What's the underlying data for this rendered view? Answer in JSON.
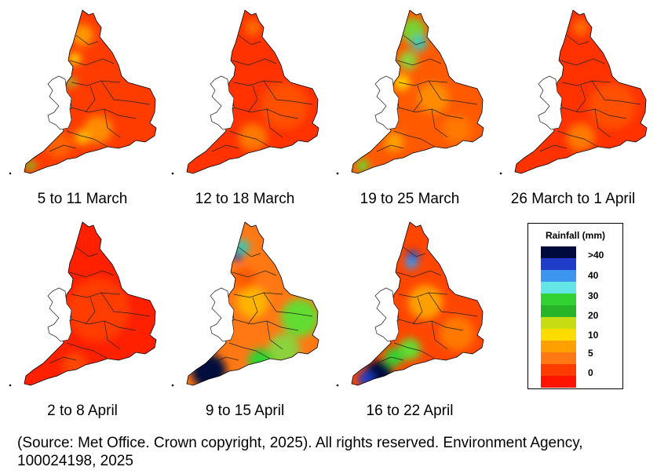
{
  "maps": [
    {
      "caption": "5 to 11 March",
      "style": "mixed"
    },
    {
      "caption": "12 to 18 March",
      "style": "dry"
    },
    {
      "caption": "19 to 25 March",
      "style": "wetnorth"
    },
    {
      "caption": "26 March to 1 April",
      "style": "dry"
    },
    {
      "caption": "2 to 8 April",
      "style": "verydry"
    },
    {
      "caption": "9 to 15 April",
      "style": "wetsw"
    },
    {
      "caption": "16 to 22 April",
      "style": "wetsw2"
    }
  ],
  "legend": {
    "title": "Rainfall (mm)",
    "colors": [
      "#000a3c",
      "#1e3cc8",
      "#3c96f0",
      "#64e6e6",
      "#32d232",
      "#28b428",
      "#c8dc14",
      "#ffdc00",
      "#ffa000",
      "#ff7814",
      "#ff3c00",
      "#ff1400"
    ],
    "labels": [
      ">40",
      "40",
      "30",
      "20",
      "10",
      "5",
      "0"
    ]
  },
  "source_text": "(Source: Met Office. Crown copyright, 2025). All rights reserved. Environment Agency, 100024198, 2025"
}
